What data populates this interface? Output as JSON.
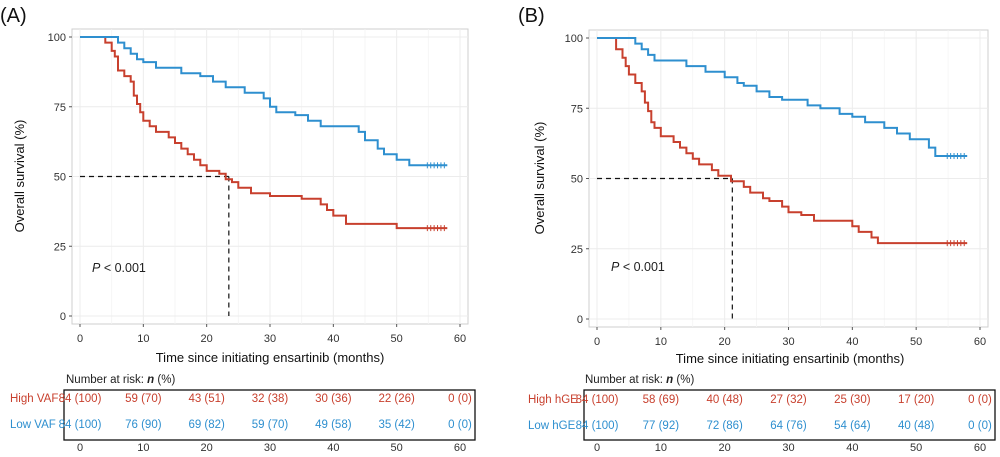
{
  "chart_data": [
    {
      "panel_label": "(A)",
      "type": "line",
      "subtype": "kaplan-meier",
      "xlabel": "Time since initiating ensartinib (months)",
      "ylabel": "Overall survival (%)",
      "xlim": [
        0,
        60
      ],
      "ylim": [
        0,
        100
      ],
      "xticks": [
        "0",
        "10",
        "20",
        "30",
        "40",
        "50",
        "60"
      ],
      "yticks": [
        "0",
        "25",
        "50",
        "75",
        "100"
      ],
      "grid": true,
      "annotation_p": "P",
      "annotation_rest": " < 0.001",
      "median_high": 23.5,
      "median_line_y": 50,
      "series": [
        {
          "name": "High VAF",
          "color": "#c8402e",
          "points": [
            [
              0,
              100
            ],
            [
              4,
              100
            ],
            [
              4,
              98
            ],
            [
              5,
              98
            ],
            [
              5,
              95
            ],
            [
              5.5,
              95
            ],
            [
              5.5,
              93
            ],
            [
              6,
              93
            ],
            [
              6,
              88
            ],
            [
              7,
              88
            ],
            [
              7,
              86
            ],
            [
              8,
              86
            ],
            [
              8,
              84
            ],
            [
              8.5,
              84
            ],
            [
              8.5,
              79
            ],
            [
              9,
              79
            ],
            [
              9,
              76
            ],
            [
              9.5,
              76
            ],
            [
              9.5,
              73
            ],
            [
              10,
              73
            ],
            [
              10,
              70
            ],
            [
              11,
              70
            ],
            [
              11,
              68
            ],
            [
              12,
              68
            ],
            [
              12,
              66
            ],
            [
              14,
              66
            ],
            [
              14,
              64
            ],
            [
              15,
              64
            ],
            [
              15,
              62
            ],
            [
              16,
              62
            ],
            [
              16,
              60
            ],
            [
              17,
              60
            ],
            [
              17,
              58
            ],
            [
              18,
              58
            ],
            [
              18,
              56
            ],
            [
              19,
              56
            ],
            [
              19,
              54
            ],
            [
              20,
              54
            ],
            [
              20,
              52
            ],
            [
              22,
              52
            ],
            [
              22,
              51
            ],
            [
              23,
              51
            ],
            [
              23,
              49
            ],
            [
              24,
              49
            ],
            [
              24,
              48
            ],
            [
              25,
              48
            ],
            [
              25,
              46
            ],
            [
              27,
              46
            ],
            [
              27,
              44
            ],
            [
              30,
              44
            ],
            [
              30,
              43
            ],
            [
              35,
              43
            ],
            [
              35,
              42
            ],
            [
              38,
              42
            ],
            [
              38,
              40
            ],
            [
              39,
              40
            ],
            [
              39,
              38
            ],
            [
              40,
              38
            ],
            [
              40,
              36
            ],
            [
              42,
              36
            ],
            [
              42,
              33
            ],
            [
              50,
              33
            ],
            [
              50,
              31.5
            ],
            [
              58,
              31.5
            ]
          ]
        },
        {
          "name": "Low VAF",
          "color": "#2e8fcf",
          "points": [
            [
              0,
              100
            ],
            [
              6,
              100
            ],
            [
              6,
              98
            ],
            [
              7,
              98
            ],
            [
              7,
              96
            ],
            [
              8,
              96
            ],
            [
              8,
              94
            ],
            [
              9,
              94
            ],
            [
              9,
              92
            ],
            [
              10,
              92
            ],
            [
              10,
              91
            ],
            [
              12,
              91
            ],
            [
              12,
              89
            ],
            [
              16,
              89
            ],
            [
              16,
              87
            ],
            [
              19,
              87
            ],
            [
              19,
              86
            ],
            [
              21,
              86
            ],
            [
              21,
              84
            ],
            [
              23,
              84
            ],
            [
              23,
              82
            ],
            [
              26,
              82
            ],
            [
              26,
              80
            ],
            [
              29,
              80
            ],
            [
              29,
              78
            ],
            [
              30,
              78
            ],
            [
              30,
              75
            ],
            [
              31,
              75
            ],
            [
              31,
              73
            ],
            [
              34,
              73
            ],
            [
              34,
              72
            ],
            [
              36,
              72
            ],
            [
              36,
              70
            ],
            [
              38,
              70
            ],
            [
              38,
              68
            ],
            [
              44,
              68
            ],
            [
              44,
              66
            ],
            [
              45,
              66
            ],
            [
              45,
              63
            ],
            [
              47,
              63
            ],
            [
              47,
              60
            ],
            [
              48,
              60
            ],
            [
              48,
              58
            ],
            [
              50,
              58
            ],
            [
              50,
              56
            ],
            [
              52,
              56
            ],
            [
              52,
              54
            ],
            [
              58,
              54
            ]
          ]
        }
      ],
      "risk_table": {
        "title_prefix": "Number at risk: ",
        "title_n": "n",
        "title_suffix": " (%)",
        "xticks": [
          "0",
          "10",
          "20",
          "30",
          "40",
          "50",
          "60"
        ],
        "rows": [
          {
            "label": "High VAF",
            "color": "#c8402e",
            "values": [
              "84 (100)",
              "59 (70)",
              "43 (51)",
              "32 (38)",
              "30 (36)",
              "22 (26)",
              "0 (0)"
            ]
          },
          {
            "label": "Low VAF",
            "color": "#2e8fcf",
            "values": [
              "84 (100)",
              "76 (90)",
              "69 (82)",
              "59 (70)",
              "49 (58)",
              "35 (42)",
              "0 (0)"
            ]
          }
        ]
      }
    },
    {
      "panel_label": "(B)",
      "type": "line",
      "subtype": "kaplan-meier",
      "xlabel": "Time since initiating ensartinib (months)",
      "ylabel": "Overall survival (%)",
      "xlim": [
        0,
        60
      ],
      "ylim": [
        0,
        100
      ],
      "xticks": [
        "0",
        "10",
        "20",
        "30",
        "40",
        "50",
        "60"
      ],
      "yticks": [
        "0",
        "25",
        "50",
        "75",
        "100"
      ],
      "grid": true,
      "annotation_p": "P",
      "annotation_rest": " < 0.001",
      "median_high": 21.2,
      "median_line_y": 50,
      "series": [
        {
          "name": "High hGE",
          "color": "#c8402e",
          "points": [
            [
              0,
              100
            ],
            [
              3,
              100
            ],
            [
              3,
              96
            ],
            [
              4,
              96
            ],
            [
              4,
              93
            ],
            [
              4.5,
              93
            ],
            [
              4.5,
              90
            ],
            [
              5,
              90
            ],
            [
              5,
              87
            ],
            [
              6,
              87
            ],
            [
              6,
              84
            ],
            [
              7,
              84
            ],
            [
              7,
              81
            ],
            [
              7.5,
              81
            ],
            [
              7.5,
              77
            ],
            [
              8,
              77
            ],
            [
              8,
              74
            ],
            [
              8.5,
              74
            ],
            [
              8.5,
              70
            ],
            [
              9,
              70
            ],
            [
              9,
              68
            ],
            [
              10,
              68
            ],
            [
              10,
              65
            ],
            [
              12,
              65
            ],
            [
              12,
              63
            ],
            [
              13,
              63
            ],
            [
              13,
              61
            ],
            [
              14,
              61
            ],
            [
              14,
              59
            ],
            [
              15,
              59
            ],
            [
              15,
              57
            ],
            [
              16,
              57
            ],
            [
              16,
              55
            ],
            [
              18,
              55
            ],
            [
              18,
              53
            ],
            [
              19,
              53
            ],
            [
              19,
              51
            ],
            [
              21,
              51
            ],
            [
              21,
              49
            ],
            [
              23,
              49
            ],
            [
              23,
              47
            ],
            [
              24,
              47
            ],
            [
              24,
              45
            ],
            [
              26,
              45
            ],
            [
              26,
              43
            ],
            [
              27,
              43
            ],
            [
              27,
              42
            ],
            [
              29,
              42
            ],
            [
              29,
              40
            ],
            [
              30,
              40
            ],
            [
              30,
              38
            ],
            [
              32,
              38
            ],
            [
              32,
              37
            ],
            [
              34,
              37
            ],
            [
              34,
              35
            ],
            [
              40,
              35
            ],
            [
              40,
              33
            ],
            [
              41,
              33
            ],
            [
              41,
              31
            ],
            [
              43,
              31
            ],
            [
              43,
              29
            ],
            [
              44,
              29
            ],
            [
              44,
              27
            ],
            [
              58,
              27
            ]
          ]
        },
        {
          "name": "Low hGE",
          "color": "#2e8fcf",
          "points": [
            [
              0,
              100
            ],
            [
              6,
              100
            ],
            [
              6,
              98
            ],
            [
              7,
              98
            ],
            [
              7,
              96
            ],
            [
              8,
              96
            ],
            [
              8,
              94
            ],
            [
              9,
              94
            ],
            [
              9,
              92
            ],
            [
              14,
              92
            ],
            [
              14,
              90
            ],
            [
              17,
              90
            ],
            [
              17,
              88
            ],
            [
              20,
              88
            ],
            [
              20,
              86
            ],
            [
              22,
              86
            ],
            [
              22,
              84
            ],
            [
              23,
              84
            ],
            [
              23,
              83
            ],
            [
              25,
              83
            ],
            [
              25,
              81
            ],
            [
              27,
              81
            ],
            [
              27,
              79
            ],
            [
              29,
              79
            ],
            [
              29,
              78
            ],
            [
              33,
              78
            ],
            [
              33,
              76
            ],
            [
              35,
              76
            ],
            [
              35,
              75
            ],
            [
              38,
              75
            ],
            [
              38,
              73
            ],
            [
              40,
              73
            ],
            [
              40,
              72
            ],
            [
              42,
              72
            ],
            [
              42,
              70
            ],
            [
              45,
              70
            ],
            [
              45,
              68
            ],
            [
              47,
              68
            ],
            [
              47,
              66
            ],
            [
              49,
              66
            ],
            [
              49,
              64
            ],
            [
              52,
              64
            ],
            [
              52,
              61
            ],
            [
              53,
              61
            ],
            [
              53,
              58
            ],
            [
              58,
              58
            ]
          ]
        }
      ],
      "risk_table": {
        "title_prefix": "Number at risk: ",
        "title_n": "n",
        "title_suffix": " (%)",
        "xticks": [
          "0",
          "10",
          "20",
          "30",
          "40",
          "50",
          "60"
        ],
        "rows": [
          {
            "label": "High hGE",
            "color": "#c8402e",
            "values": [
              "84 (100)",
              "58 (69)",
              "40 (48)",
              "27 (32)",
              "25 (30)",
              "17 (20)",
              "0 (0)"
            ]
          },
          {
            "label": "Low hGE",
            "color": "#2e8fcf",
            "values": [
              "84 (100)",
              "77 (92)",
              "72 (86)",
              "64 (76)",
              "54 (64)",
              "40 (48)",
              "0 (0)"
            ]
          }
        ]
      }
    }
  ]
}
